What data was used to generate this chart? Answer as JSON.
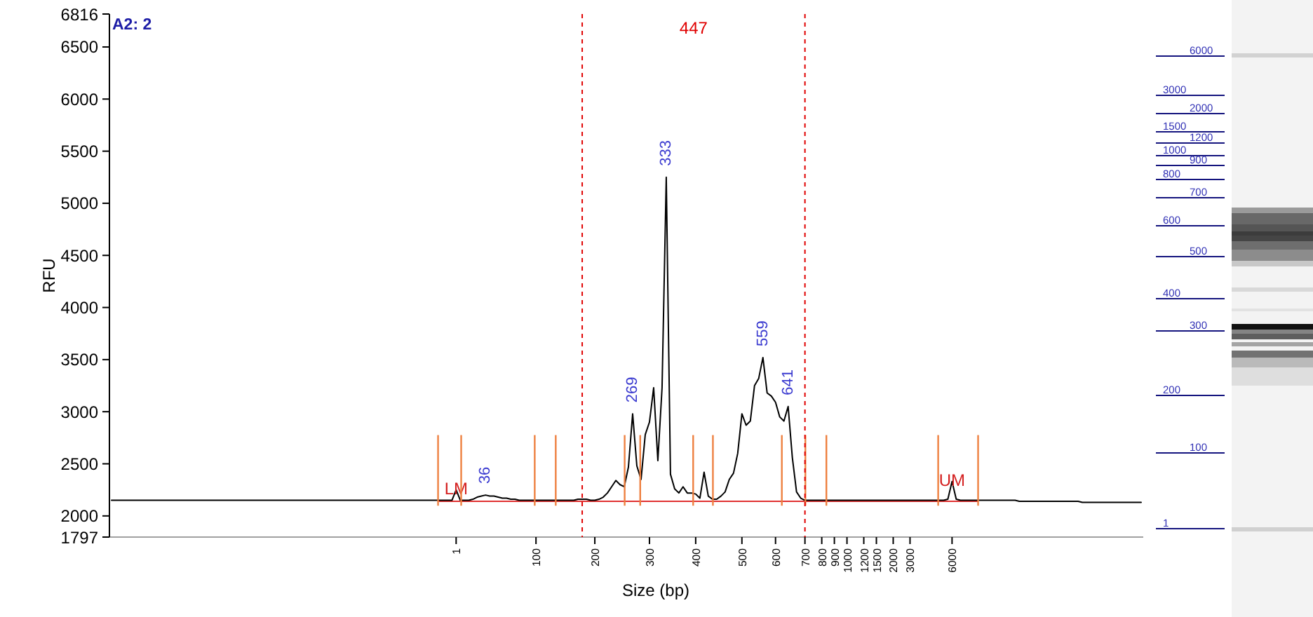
{
  "chart_data": [
    {
      "type": "line",
      "title": "A2: 2",
      "xlabel": "Size (bp)",
      "ylabel": "RFU",
      "categories": [
        null,
        null,
        null,
        null,
        null,
        null,
        null,
        null,
        null,
        null,
        null,
        null,
        null,
        null,
        null,
        null,
        null,
        null,
        null,
        null,
        null,
        null,
        null,
        null,
        null,
        null,
        null,
        null,
        null,
        null,
        null,
        null,
        null,
        null,
        null,
        null,
        null,
        null,
        null,
        null,
        null,
        null,
        null,
        null,
        null,
        null,
        null,
        null,
        null,
        null,
        null,
        null,
        null,
        null,
        null,
        null,
        null,
        null,
        null,
        null,
        null,
        null,
        null,
        null,
        null,
        null,
        null,
        null,
        null,
        null,
        null,
        null,
        null,
        null,
        null,
        null,
        null,
        null,
        null,
        null,
        null,
        null,
        "1",
        null,
        null,
        null,
        null,
        null,
        null,
        null,
        null,
        null,
        null,
        null,
        null,
        null,
        null,
        null,
        null,
        null,
        null,
        "100",
        null,
        null,
        null,
        null,
        null,
        null,
        null,
        null,
        null,
        null,
        null,
        null,
        null,
        "200",
        null,
        null,
        null,
        null,
        null,
        null,
        null,
        null,
        null,
        null,
        null,
        null,
        "300",
        null,
        null,
        null,
        null,
        null,
        null,
        null,
        null,
        null,
        null,
        "400",
        null,
        null,
        null,
        null,
        null,
        null,
        null,
        null,
        null,
        null,
        "500",
        null,
        null,
        null,
        null,
        null,
        null,
        null,
        "600",
        null,
        null,
        null,
        null,
        null,
        null,
        "700",
        null,
        null,
        null,
        "800",
        null,
        null,
        "900",
        null,
        null,
        "1000",
        null,
        null,
        null,
        "1200",
        null,
        null,
        "1500",
        null,
        null,
        null,
        "2000",
        null,
        null,
        null,
        "3000",
        null,
        null,
        null,
        null,
        null,
        null,
        null,
        null,
        null,
        "6000",
        null,
        null,
        null,
        null,
        null,
        null,
        null,
        null,
        null,
        null,
        null,
        null,
        null,
        null,
        null,
        null,
        null,
        null,
        null,
        null,
        null,
        null,
        null,
        null,
        null,
        null,
        null,
        null,
        null,
        null,
        null,
        null,
        null,
        null,
        null,
        null,
        null,
        null,
        null,
        null,
        null,
        null,
        null,
        null,
        null
      ],
      "ylim": [
        1797,
        6816
      ],
      "yticks": [
        1797,
        2000,
        2500,
        3000,
        3500,
        4000,
        4500,
        5000,
        5500,
        6000,
        6500,
        6816
      ],
      "series": [
        {
          "color": "#e03030",
          "values": [
            null,
            null,
            null,
            null,
            null,
            null,
            null,
            null,
            null,
            null,
            null,
            null,
            null,
            null,
            null,
            null,
            null,
            null,
            null,
            null,
            null,
            null,
            null,
            null,
            null,
            null,
            null,
            null,
            null,
            null,
            null,
            null,
            null,
            null,
            null,
            null,
            null,
            null,
            null,
            null,
            null,
            null,
            null,
            null,
            null,
            null,
            null,
            null,
            null,
            null,
            null,
            null,
            null,
            null,
            null,
            null,
            null,
            null,
            null,
            null,
            null,
            null,
            null,
            null,
            null,
            null,
            null,
            null,
            null,
            null,
            null,
            null,
            null,
            null,
            null,
            null,
            null,
            null,
            2140,
            2140,
            2140,
            2140,
            2140,
            2140,
            2140,
            2140,
            2140,
            2140,
            2140,
            2140,
            2140,
            2140,
            2140,
            2140,
            2140,
            2140,
            2140,
            2140,
            2140,
            2140,
            2140,
            2140,
            2140,
            2140,
            2140,
            2140,
            2140,
            2140,
            2140,
            2140,
            2140,
            2140,
            2140,
            2140,
            2140,
            2140,
            2140,
            2140,
            2140,
            2140,
            2140,
            2140,
            2140,
            2140,
            2140,
            2140,
            2140,
            2140,
            2140,
            2140,
            2140,
            2140,
            2140,
            2140,
            2140,
            2140,
            2140,
            2140,
            2140,
            2140,
            2140,
            2140,
            2140,
            2140,
            2140,
            2140,
            2140,
            2140,
            2140,
            2140,
            2140,
            2140,
            2140,
            2140,
            2140,
            2140,
            2140,
            2140,
            2140,
            2140,
            2140,
            2140,
            2140,
            2140,
            2140,
            2140,
            2140,
            2140,
            2140,
            2140,
            2140,
            2140,
            2140,
            2140,
            2140,
            2140,
            2140,
            2140,
            2140,
            2140,
            2140,
            2140,
            2140,
            2140,
            2140,
            2140,
            2140,
            2140,
            2140,
            2140,
            2140,
            2140,
            2140,
            2140,
            2140,
            2140,
            2140,
            2140,
            2140,
            2140,
            2140,
            2140,
            2140,
            2140,
            2140,
            2140,
            2140,
            null,
            null,
            null,
            null,
            null,
            null,
            null,
            null,
            null,
            null,
            null,
            null,
            null,
            null,
            null,
            null,
            null,
            null,
            null,
            null,
            null,
            null,
            null,
            null,
            null,
            null,
            null,
            null,
            null,
            null,
            null,
            null,
            null,
            null,
            null,
            null,
            null,
            null,
            null
          ]
        },
        {
          "color": "#000000",
          "values": [
            2150,
            2150,
            2150,
            2150,
            2150,
            2150,
            2150,
            2150,
            2150,
            2150,
            2150,
            2150,
            2150,
            2150,
            2150,
            2150,
            2150,
            2150,
            2150,
            2150,
            2150,
            2150,
            2150,
            2150,
            2150,
            2150,
            2150,
            2150,
            2150,
            2150,
            2150,
            2150,
            2150,
            2150,
            2150,
            2150,
            2150,
            2150,
            2150,
            2150,
            2150,
            2150,
            2150,
            2150,
            2150,
            2150,
            2150,
            2150,
            2150,
            2150,
            2150,
            2150,
            2150,
            2150,
            2150,
            2150,
            2150,
            2150,
            2150,
            2150,
            2150,
            2150,
            2150,
            2150,
            2150,
            2150,
            2150,
            2150,
            2150,
            2150,
            2150,
            2150,
            2150,
            2150,
            2150,
            2150,
            2150,
            2150,
            2150,
            2150,
            2150,
            2150,
            2250,
            2150,
            2150,
            2150,
            2160,
            2180,
            2190,
            2200,
            2190,
            2190,
            2180,
            2170,
            2170,
            2160,
            2160,
            2150,
            2150,
            2150,
            2150,
            2150,
            2150,
            2150,
            2150,
            2150,
            2150,
            2150,
            2150,
            2150,
            2150,
            2160,
            2160,
            2160,
            2150,
            2150,
            2160,
            2180,
            2220,
            2280,
            2340,
            2300,
            2280,
            2470,
            2980,
            2480,
            2350,
            2780,
            2900,
            3230,
            2530,
            3230,
            5250,
            2400,
            2260,
            2220,
            2280,
            2220,
            2220,
            2210,
            2170,
            2420,
            2190,
            2160,
            2160,
            2190,
            2230,
            2350,
            2410,
            2600,
            2980,
            2870,
            2910,
            3250,
            3320,
            3520,
            3180,
            3150,
            3090,
            2950,
            2910,
            3050,
            2560,
            2230,
            2170,
            2150,
            2150,
            2150,
            2150,
            2150,
            2150,
            2150,
            2150,
            2150,
            2150,
            2150,
            2150,
            2150,
            2150,
            2150,
            2150,
            2150,
            2150,
            2150,
            2150,
            2150,
            2150,
            2150,
            2150,
            2150,
            2150,
            2150,
            2150,
            2150,
            2150,
            2150,
            2150,
            2150,
            2150,
            2160,
            2330,
            2160,
            2150,
            2150,
            2150,
            2150,
            2150,
            2150,
            2150,
            2150,
            2150,
            2150,
            2150,
            2150,
            2150,
            2150,
            2140,
            2140,
            2140,
            2140,
            2140,
            2140,
            2140,
            2140,
            2140,
            2140,
            2140,
            2140,
            2140,
            2140,
            2140,
            2130,
            2130,
            2130,
            2130,
            2130,
            2130,
            2130,
            2130,
            2130,
            2130,
            2130,
            2130,
            2130,
            2130,
            2130
          ]
        }
      ],
      "annotations": [
        {
          "text": "LM",
          "x": "1",
          "y": 2250
        },
        {
          "text": "UM",
          "x": "6000",
          "y": 2330
        },
        {
          "text": "36",
          "y": 2200
        },
        {
          "text": "269",
          "y": 2980
        },
        {
          "text": "333",
          "y": 5250
        },
        {
          "text": "559",
          "y": 3520
        },
        {
          "text": "641",
          "y": 3050
        },
        "447"
      ]
    },
    {
      "type": "other",
      "annotations": [
        "6000",
        "3000",
        "2000",
        "1500",
        "1200",
        "1000",
        "900",
        "800",
        "700",
        "600",
        "500",
        "400",
        "300",
        "200",
        "100",
        "1"
      ]
    }
  ]
}
